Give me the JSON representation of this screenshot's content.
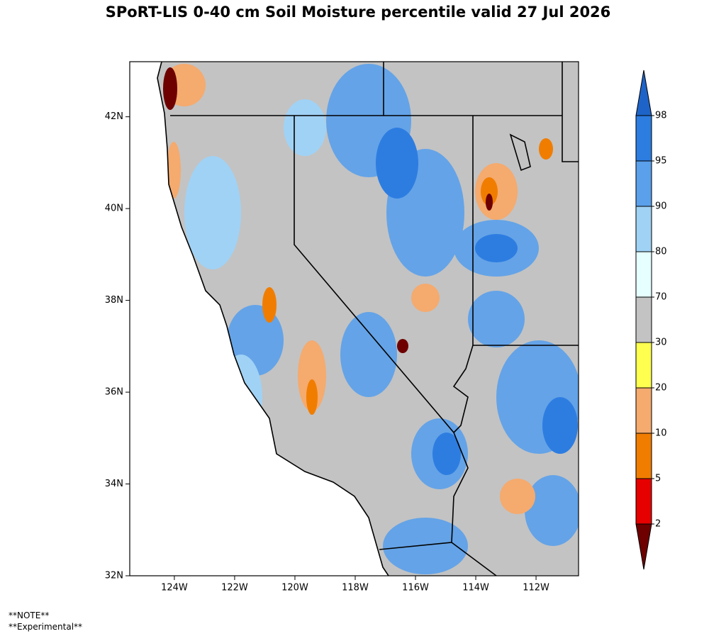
{
  "title": "SPoRT-LIS 0-40 cm Soil Moisture percentile valid 27 Jul 2026",
  "map": {
    "xlim": [
      -125.48,
      -110.59
    ],
    "ylim": [
      32,
      43.2
    ],
    "lat_ticks": [
      {
        "value": 32,
        "label": "32N"
      },
      {
        "value": 34,
        "label": "34N"
      },
      {
        "value": 36,
        "label": "36N"
      },
      {
        "value": 38,
        "label": "38N"
      },
      {
        "value": 40,
        "label": "40N"
      },
      {
        "value": 42,
        "label": "42N"
      }
    ],
    "lon_ticks": [
      {
        "value": -124,
        "label": "124W"
      },
      {
        "value": -122,
        "label": "122W"
      },
      {
        "value": -120,
        "label": "120W"
      },
      {
        "value": -118,
        "label": "118W"
      },
      {
        "value": -116,
        "label": "116W"
      },
      {
        "value": -114,
        "label": "114W"
      },
      {
        "value": -112,
        "label": "112W"
      }
    ]
  },
  "colorbar": {
    "levels": [
      2,
      5,
      10,
      20,
      30,
      70,
      80,
      90,
      95,
      98
    ],
    "colors": [
      "#6e0000",
      "#e60000",
      "#f07d00",
      "#f5aa6e",
      "#ffff50",
      "#c3c3c3",
      "#e6ffff",
      "#a0d2f5",
      "#5aa0eb",
      "#2d7de1",
      "#1e64c8"
    ]
  },
  "notes": [
    "**NOTE**",
    "**Experimental**"
  ]
}
